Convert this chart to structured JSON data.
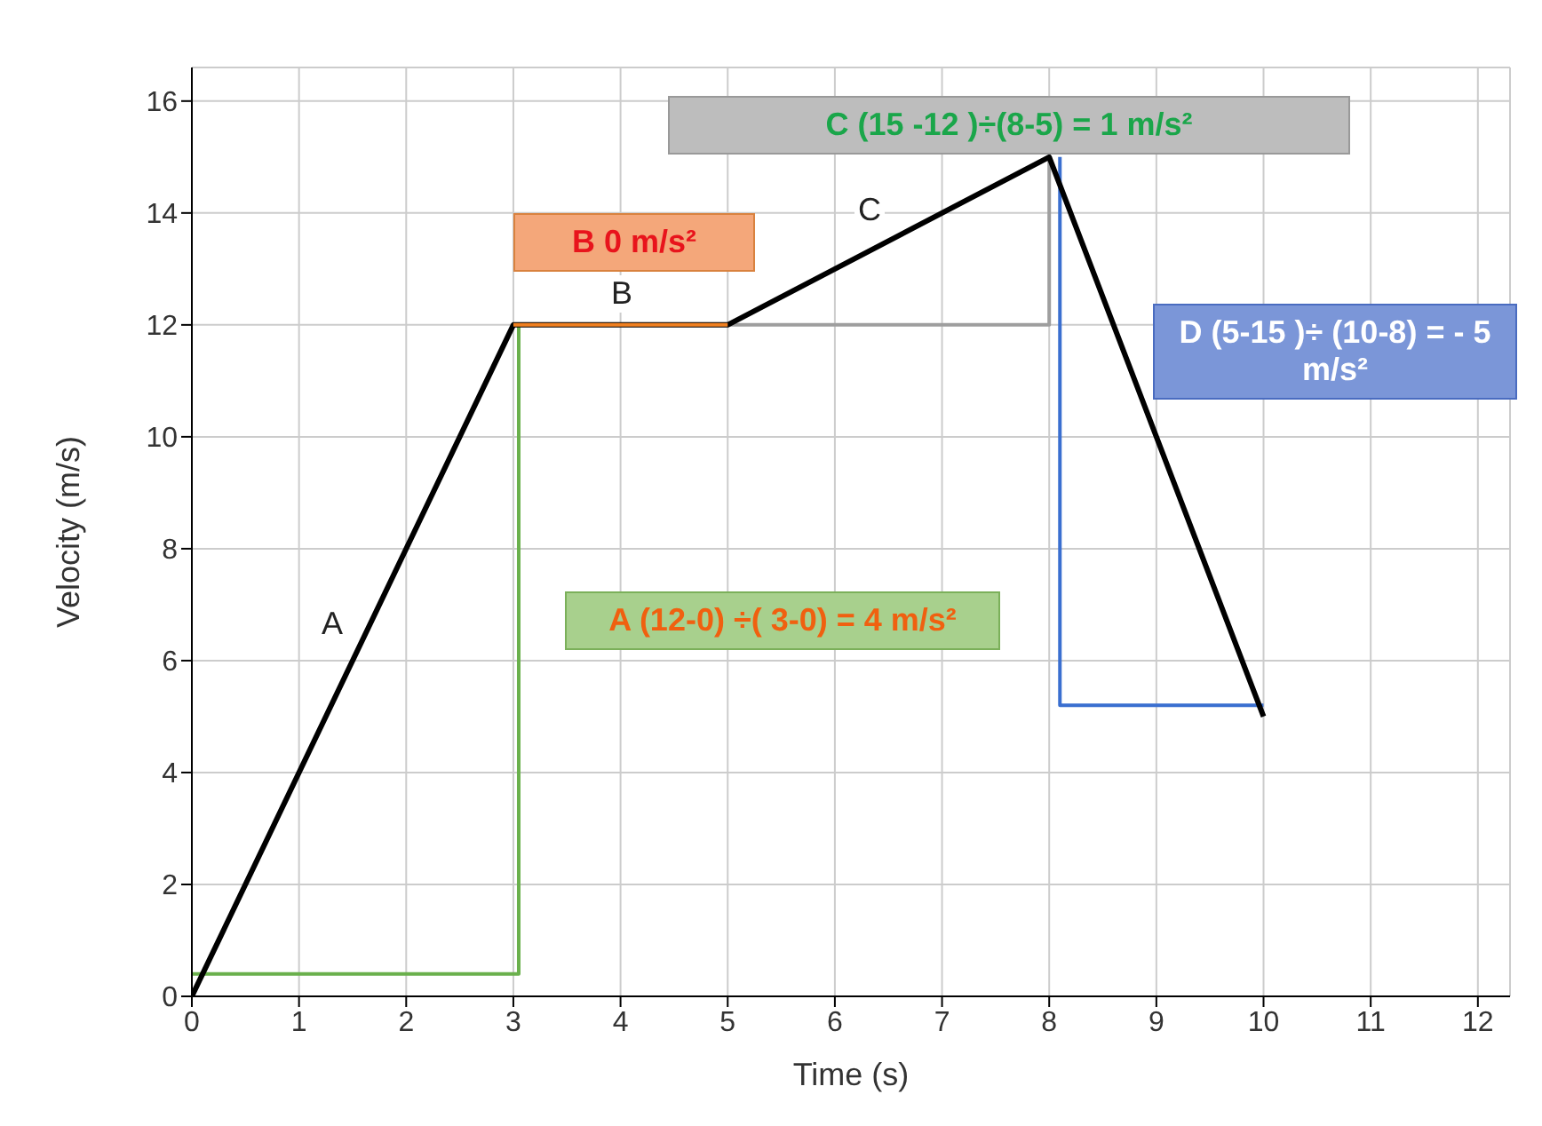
{
  "chart_data": {
    "type": "line",
    "xlabel": "Time (s)",
    "ylabel": "Velocity (m/s)",
    "xlim": [
      0,
      12.3
    ],
    "ylim": [
      0,
      16.6
    ],
    "xticks": [
      0,
      1,
      2,
      3,
      4,
      5,
      6,
      7,
      8,
      9,
      10,
      11,
      12
    ],
    "yticks": [
      0,
      2,
      4,
      6,
      8,
      10,
      12,
      14,
      16
    ],
    "grid": true,
    "marker": "none",
    "line_style": "solid",
    "series": [
      {
        "color": "#6ab04c",
        "x": [
          0,
          3.05,
          3.05
        ],
        "values": [
          0.4,
          0.4,
          12
        ]
      },
      {
        "color": "#9e9e9e",
        "x": [
          5,
          8,
          8
        ],
        "values": [
          12,
          12,
          15
        ]
      },
      {
        "color": "#3a6fd0",
        "x": [
          8.1,
          8.1,
          10
        ],
        "values": [
          15,
          5.2,
          5.2
        ]
      },
      {
        "color": "#000000",
        "x": [
          0,
          3,
          5,
          8,
          10
        ],
        "values": [
          0,
          12,
          12,
          15,
          5
        ]
      },
      {
        "color": "#f08020",
        "x": [
          3,
          5
        ],
        "values": [
          12,
          12
        ]
      }
    ],
    "annotations": [
      "A",
      "B",
      "C",
      "C  (15 -12 )÷(8-5) = 1 m/s²",
      "B  0 m/s²",
      "D  (5-15 )÷ (10-8) = - 5 m/s²",
      "A (12-0) ÷( 3-0) = 4 m/s²"
    ]
  }
}
